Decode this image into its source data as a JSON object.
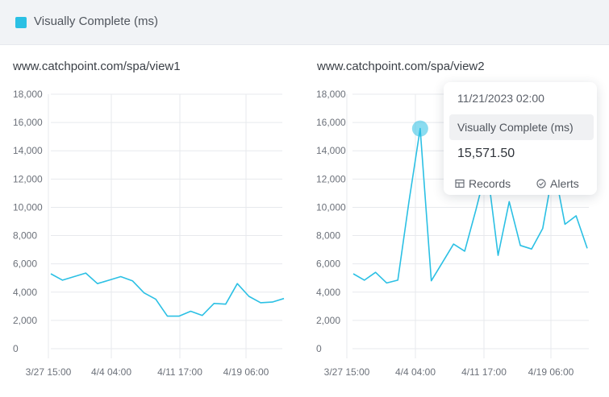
{
  "legend": {
    "label": "Visually Complete (ms)",
    "color": "#2bc0e4"
  },
  "chart_data": [
    {
      "type": "line",
      "title": "www.catchpoint.com/spa/view1",
      "xlabel": "",
      "ylabel": "",
      "ylim": [
        0,
        18000
      ],
      "yticks": [
        "18,000",
        "16,000",
        "14,000",
        "12,000",
        "10,000",
        "8,000",
        "6,000",
        "4,000",
        "2,000",
        "0"
      ],
      "xticks": [
        "3/27 15:00",
        "4/4 04:00",
        "4/11 17:00",
        "4/19 06:00"
      ],
      "grid": true,
      "series": [
        {
          "color": "#2bc0e4",
          "values": [
            5300,
            4850,
            5100,
            5350,
            4600,
            4850,
            5100,
            4800,
            3950,
            3500,
            2300,
            2300,
            2650,
            2350,
            3200,
            3150,
            4600,
            3700,
            3250,
            3300,
            3550
          ]
        }
      ]
    },
    {
      "type": "line",
      "title": "www.catchpoint.com/spa/view2",
      "xlabel": "",
      "ylabel": "",
      "ylim": [
        0,
        18000
      ],
      "yticks": [
        "18,000",
        "16,000",
        "14,000",
        "12,000",
        "10,000",
        "8,000",
        "6,000",
        "4,000",
        "2,000",
        "0"
      ],
      "xticks": [
        "3/27 15:00",
        "4/4 04:00",
        "4/11 17:00",
        "4/19 06:00"
      ],
      "grid": true,
      "highlight_index": 6,
      "series": [
        {
          "color": "#2bc0e4",
          "values": [
            5300,
            4850,
            5400,
            4650,
            4850,
            10400,
            15571.5,
            4800,
            6100,
            7400,
            6900,
            9800,
            12900,
            6600,
            10400,
            7300,
            7050,
            8500,
            12900,
            8800,
            9400,
            7100
          ]
        }
      ]
    }
  ],
  "tooltip": {
    "datetime": "11/21/2023  02:00",
    "series_label": "Visually Complete (ms)",
    "value": "15,571.50",
    "records_label": "Records",
    "alerts_label": "Alerts",
    "records_icon": "table-icon",
    "alerts_icon": "check-circle-icon"
  }
}
